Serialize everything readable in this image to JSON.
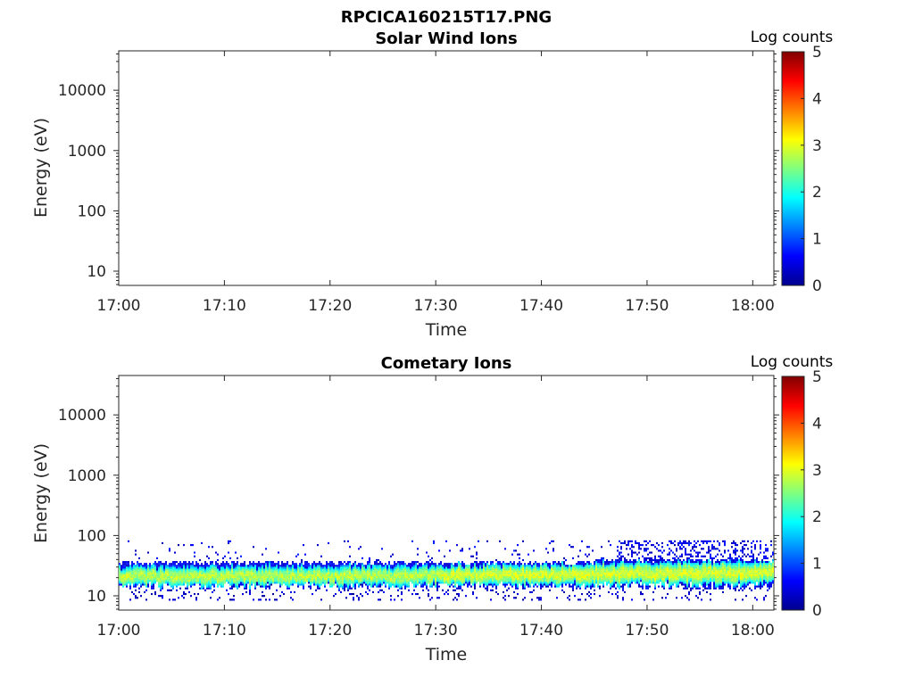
{
  "figure": {
    "title": "RPCICA160215T17.PNG"
  },
  "colorbar": {
    "label": "Log counts",
    "range": [
      0,
      5
    ],
    "ticks": [
      "0",
      "1",
      "2",
      "3",
      "4",
      "5"
    ]
  },
  "chart_data": [
    {
      "type": "heatmap",
      "title": "Solar Wind Ions",
      "xlabel": "Time",
      "ylabel": "Energy (eV)",
      "x_ticks": [
        "17:00",
        "17:10",
        "17:20",
        "17:30",
        "17:40",
        "17:50",
        "18:00"
      ],
      "x_range_minutes": [
        0,
        62
      ],
      "y_ticks": [
        "10",
        "100",
        "1000",
        "10000"
      ],
      "y_scale": "log",
      "y_range_eV": [
        5.8,
        45000
      ],
      "color_scale": "jet",
      "data": "empty (no counts)"
    },
    {
      "type": "heatmap",
      "title": "Cometary Ions",
      "xlabel": "Time",
      "ylabel": "Energy (eV)",
      "x_ticks": [
        "17:00",
        "17:10",
        "17:20",
        "17:30",
        "17:40",
        "17:50",
        "18:00"
      ],
      "x_range_minutes": [
        0,
        62
      ],
      "y_ticks": [
        "10",
        "100",
        "1000",
        "10000"
      ],
      "y_scale": "log",
      "y_range_eV": [
        5.8,
        45000
      ],
      "color_scale": "jet",
      "band": {
        "center_eV": [
          {
            "t": 0,
            "eV": 20
          },
          {
            "t": 30,
            "eV": 21
          },
          {
            "t": 45,
            "eV": 22
          },
          {
            "t": 62,
            "eV": 24
          }
        ],
        "low_eV": 14,
        "high_eV": 34,
        "peak_log_counts": 2.8,
        "sparse_upper_eV": 80,
        "sparse_lower_eV": 8,
        "sparse_upper_start_min": 47
      }
    }
  ]
}
